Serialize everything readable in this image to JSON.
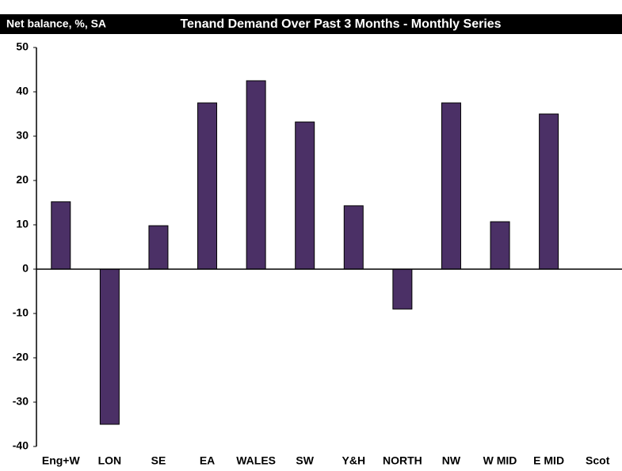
{
  "chart_data": {
    "type": "bar",
    "title": "Tenand Demand Over Past 3 Months - Monthly Series",
    "y_label": "Net balance, %, SA",
    "categories": [
      "Eng+W",
      "LON",
      "SE",
      "EA",
      "WALES",
      "SW",
      "Y&H",
      "NORTH",
      "NW",
      "W MID",
      "E MID",
      "Scot"
    ],
    "values": [
      15.2,
      -35,
      9.8,
      37.5,
      42.5,
      33.2,
      14.3,
      -9,
      37.5,
      10.7,
      35,
      null
    ],
    "color": "#4b3066",
    "ylim": [
      -40,
      50
    ],
    "yticks": [
      -40,
      -30,
      -20,
      -10,
      0,
      10,
      20,
      30,
      40,
      50
    ],
    "grid": false
  }
}
